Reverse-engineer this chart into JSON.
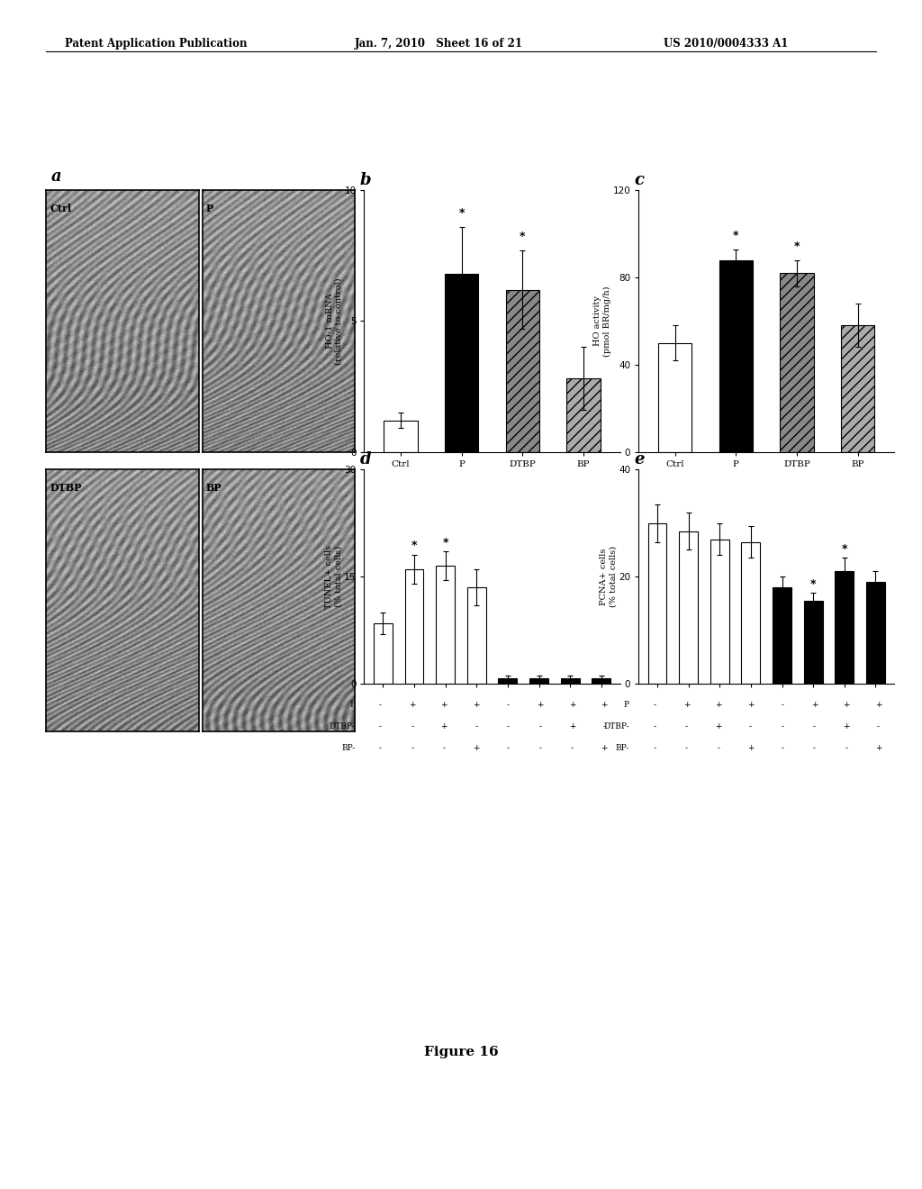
{
  "header_left": "Patent Application Publication",
  "header_mid": "Jan. 7, 2010   Sheet 16 of 21",
  "header_right": "US 2010/0004333 A1",
  "figure_label": "Figure 16",
  "panel_b": {
    "label": "b",
    "categories": [
      "Ctrl",
      "P",
      "DTBP",
      "BP"
    ],
    "values": [
      1.2,
      6.8,
      6.2,
      2.8
    ],
    "errors": [
      0.3,
      1.8,
      1.5,
      1.2
    ],
    "colors": [
      "white",
      "black",
      "#888888",
      "#aaaaaa"
    ],
    "hatches": [
      "",
      "",
      "///",
      "///"
    ],
    "ylabel": "HO-1 mRNA\n(relative to control)",
    "ylim": [
      0,
      10
    ],
    "yticks": [
      0,
      5,
      10
    ],
    "significant": [
      false,
      true,
      true,
      false
    ],
    "sig_labels": [
      "",
      "*",
      "*",
      ""
    ]
  },
  "panel_c": {
    "label": "c",
    "categories": [
      "Ctrl",
      "P",
      "DTBP",
      "BP"
    ],
    "values": [
      50,
      88,
      82,
      58
    ],
    "errors": [
      8,
      5,
      6,
      10
    ],
    "colors": [
      "white",
      "black",
      "#888888",
      "#aaaaaa"
    ],
    "hatches": [
      "",
      "",
      "///",
      "///"
    ],
    "ylabel": "HO activity\n(pmol BR/mg/h)",
    "ylim": [
      0,
      120
    ],
    "yticks": [
      0,
      40,
      80,
      120
    ],
    "significant": [
      false,
      true,
      true,
      false
    ],
    "sig_labels": [
      "",
      "*",
      "*",
      ""
    ]
  },
  "panel_d": {
    "label": "d",
    "values": [
      8.5,
      16.0,
      16.5,
      13.5,
      0.8,
      0.8,
      0.8,
      0.8
    ],
    "errors": [
      1.5,
      2.0,
      2.0,
      2.5,
      0.3,
      0.3,
      0.3,
      0.3
    ],
    "colors": [
      "white",
      "white",
      "white",
      "white",
      "black",
      "black",
      "black",
      "black"
    ],
    "ylabel": "TUNEL+ cells\n(% total cells)",
    "ylim": [
      0,
      30
    ],
    "yticks": [
      0,
      15,
      30
    ],
    "significant": [
      false,
      true,
      true,
      false,
      false,
      false,
      false,
      false
    ],
    "sig_labels": [
      "",
      "*",
      "*",
      "",
      "",
      "",
      "",
      ""
    ],
    "x_labels_P": [
      "-",
      "+",
      "+",
      "+",
      "-",
      "+",
      "+",
      "+"
    ],
    "x_labels_DTBP": [
      "-",
      "-",
      "+",
      "-",
      "-",
      "-",
      "+",
      "-"
    ],
    "x_labels_BP": [
      "-",
      "-",
      "-",
      "+",
      "-",
      "-",
      "-",
      "+"
    ]
  },
  "panel_e": {
    "label": "e",
    "values": [
      30.0,
      28.5,
      27.0,
      26.5,
      18.0,
      15.5,
      21.0,
      19.0
    ],
    "errors": [
      3.5,
      3.5,
      3.0,
      3.0,
      2.0,
      1.5,
      2.5,
      2.0
    ],
    "colors": [
      "white",
      "white",
      "white",
      "white",
      "black",
      "black",
      "black",
      "black"
    ],
    "ylabel": "PCNA+ cells\n(% total cells)",
    "ylim": [
      0,
      40
    ],
    "yticks": [
      0,
      20,
      40
    ],
    "significant": [
      false,
      false,
      false,
      false,
      false,
      true,
      true,
      false
    ],
    "sig_labels": [
      "",
      "",
      "",
      "",
      "",
      "*",
      "*",
      ""
    ],
    "x_labels_P": [
      "-",
      "+",
      "+",
      "+",
      "-",
      "+",
      "+",
      "+"
    ],
    "x_labels_DTBP": [
      "-",
      "-",
      "+",
      "-",
      "-",
      "-",
      "+",
      "-"
    ],
    "x_labels_BP": [
      "-",
      "-",
      "-",
      "+",
      "-",
      "-",
      "-",
      "+"
    ]
  },
  "bg_color": "#ffffff"
}
